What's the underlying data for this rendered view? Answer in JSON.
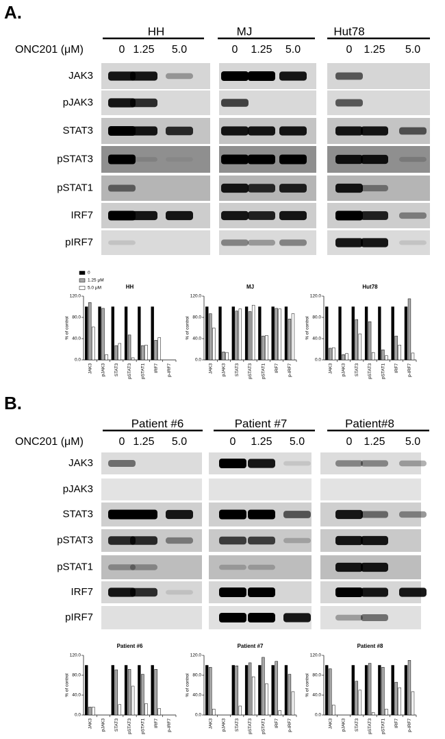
{
  "panels": [
    {
      "label": "A.",
      "dose_label": "ONC201 (μM)",
      "groups": [
        {
          "name": "HH",
          "doses": [
            "0",
            "1.25",
            "5.0"
          ]
        },
        {
          "name": "MJ",
          "doses": [
            "0",
            "1.25",
            "5.0"
          ]
        },
        {
          "name": "Hut78",
          "doses": [
            "0",
            "1.25",
            "5.0"
          ]
        }
      ],
      "proteins": [
        "JAK3",
        "pJAK3",
        "STAT3",
        "pSTAT3",
        "pSTAT1",
        "IRF7",
        "pIRF7"
      ]
    },
    {
      "label": "B.",
      "dose_label": "ONC201 (μM)",
      "groups": [
        {
          "name": "Patient #6",
          "doses": [
            "0",
            "1.25",
            "5.0"
          ]
        },
        {
          "name": "Patient #7",
          "doses": [
            "0",
            "1.25",
            "5.0"
          ]
        },
        {
          "name": "Patient#8",
          "doses": [
            "0",
            "1.25",
            "5.0"
          ]
        }
      ],
      "proteins": [
        "JAK3",
        "pJAK3",
        "STAT3",
        "pSTAT3",
        "pSTAT1",
        "IRF7",
        "pIRF7"
      ]
    }
  ],
  "chart_data": [
    {
      "type": "bar",
      "title": "HH",
      "ylabel": "% of control",
      "categories": [
        "JAK3",
        "pJAK3",
        "STAT3",
        "pSTAT3",
        "pSTAT1",
        "IRF7",
        "p-IRF7"
      ],
      "series": [
        {
          "name": "0",
          "color": "#000000",
          "values": [
            100,
            100,
            100,
            100,
            100,
            100,
            null
          ]
        },
        {
          "name": "1.25 μM",
          "color": "#a6a6a6",
          "values": [
            108,
            97,
            27,
            47,
            27,
            37,
            null
          ]
        },
        {
          "name": "5.0 μM",
          "color": "#ffffff",
          "values": [
            62,
            10,
            31,
            4,
            28,
            42,
            null
          ]
        }
      ],
      "ylim": [
        0,
        120
      ],
      "yticks": [
        {
          "value": 0,
          "label": "0.0"
        },
        {
          "value": 40,
          "label": "40.0"
        },
        {
          "value": 80,
          "label": "80.0"
        },
        {
          "value": 120,
          "label": "120.0"
        }
      ]
    },
    {
      "type": "bar",
      "title": "MJ",
      "ylabel": "% of control",
      "categories": [
        "JAK3",
        "pJAK3",
        "STAT3",
        "pSTAT3",
        "pSTAT1",
        "IRF7",
        "p-IRF7"
      ],
      "series": [
        {
          "color": "#000000",
          "values": [
            100,
            100,
            100,
            100,
            100,
            100,
            100
          ]
        },
        {
          "color": "#a6a6a6",
          "values": [
            87,
            15,
            92,
            91,
            45,
            97,
            77
          ]
        },
        {
          "color": "#ffffff",
          "values": [
            60,
            14,
            96,
            103,
            46,
            96,
            87
          ]
        }
      ],
      "ylim": [
        0,
        120
      ],
      "yticks": [
        {
          "value": 0,
          "label": "0.0"
        },
        {
          "value": 40,
          "label": "40.0"
        },
        {
          "value": 80,
          "label": "80.0"
        },
        {
          "value": 120,
          "label": "120.0"
        }
      ]
    },
    {
      "type": "bar",
      "title": "Hut78",
      "ylabel": "% of control",
      "categories": [
        "JAK3",
        "pJAK3",
        "STAT3",
        "pSTAT3",
        "pSTAT1",
        "IRF7",
        "p-IRF7"
      ],
      "series": [
        {
          "color": "#000000",
          "values": [
            100,
            100,
            100,
            100,
            100,
            100,
            100
          ]
        },
        {
          "color": "#a6a6a6",
          "values": [
            22,
            10,
            76,
            72,
            19,
            45,
            115
          ]
        },
        {
          "color": "#ffffff",
          "values": [
            23,
            12,
            49,
            14,
            8,
            28,
            13
          ]
        }
      ],
      "ylim": [
        0,
        120
      ],
      "yticks": [
        {
          "value": 0,
          "label": "0.0"
        },
        {
          "value": 40,
          "label": "40.0"
        },
        {
          "value": 80,
          "label": "80.0"
        },
        {
          "value": 120,
          "label": "120.0"
        }
      ]
    },
    {
      "type": "bar",
      "title": "Patient #6",
      "ylabel": "% of control",
      "categories": [
        "JAK3",
        "pJAK3",
        "STAT3",
        "pSTAT3",
        "pSTAT1",
        "IRF7",
        "p-IRF7"
      ],
      "series": [
        {
          "color": "#000000",
          "values": [
            100,
            null,
            100,
            100,
            100,
            100,
            null
          ]
        },
        {
          "color": "#a6a6a6",
          "values": [
            16,
            null,
            91,
            92,
            82,
            92,
            null
          ]
        },
        {
          "color": "#ffffff",
          "values": [
            16,
            null,
            21,
            58,
            23,
            13,
            null
          ]
        }
      ],
      "ylim": [
        0,
        120
      ],
      "yticks": [
        {
          "value": 0,
          "label": "0.0"
        },
        {
          "value": 40,
          "label": "40.0"
        },
        {
          "value": 80,
          "label": "80.0"
        },
        {
          "value": 120,
          "label": "120.0"
        }
      ]
    },
    {
      "type": "bar",
      "title": "Patient #7",
      "ylabel": "% of control",
      "categories": [
        "JAK3",
        "pJAK3",
        "STAT3",
        "pSTAT3",
        "pSTAT1",
        "IRF7",
        "p-IRF7"
      ],
      "series": [
        {
          "color": "#000000",
          "values": [
            100,
            null,
            100,
            100,
            100,
            100,
            100
          ]
        },
        {
          "color": "#a6a6a6",
          "values": [
            96,
            null,
            99,
            105,
            116,
            108,
            82
          ]
        },
        {
          "color": "#ffffff",
          "values": [
            12,
            null,
            18,
            77,
            63,
            9,
            47
          ]
        }
      ],
      "ylim": [
        0,
        120
      ],
      "yticks": [
        {
          "value": 0,
          "label": "0.0"
        },
        {
          "value": 40,
          "label": "40.0"
        },
        {
          "value": 80,
          "label": "80.0"
        },
        {
          "value": 120,
          "label": "120.0"
        }
      ]
    },
    {
      "type": "bar",
      "title": "Patient #8",
      "ylabel": "% of control",
      "categories": [
        "JAK3",
        "pJAK3",
        "STAT3",
        "pSTAT3",
        "pSTAT1",
        "IRF7",
        "p-IRF7"
      ],
      "series": [
        {
          "color": "#000000",
          "values": [
            100,
            null,
            100,
            100,
            100,
            100,
            100
          ]
        },
        {
          "color": "#a6a6a6",
          "values": [
            93,
            null,
            68,
            104,
            96,
            66,
            110
          ]
        },
        {
          "color": "#ffffff",
          "values": [
            20,
            null,
            50,
            5,
            12,
            55,
            47
          ]
        }
      ],
      "ylim": [
        0,
        120
      ],
      "yticks": [
        {
          "value": 0,
          "label": "0.0"
        },
        {
          "value": 40,
          "label": "40.0"
        },
        {
          "value": 80,
          "label": "80.0"
        },
        {
          "value": 120,
          "label": "120.0"
        }
      ]
    }
  ]
}
